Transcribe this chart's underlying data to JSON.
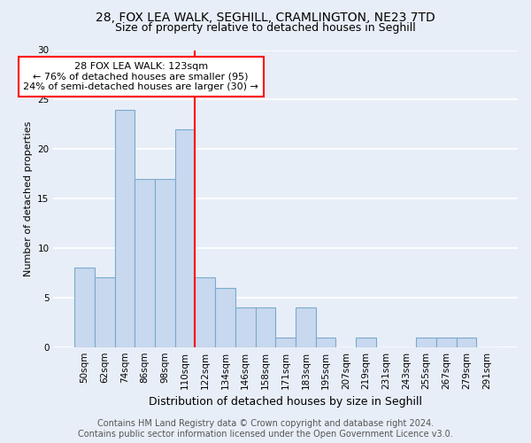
{
  "title1": "28, FOX LEA WALK, SEGHILL, CRAMLINGTON, NE23 7TD",
  "title2": "Size of property relative to detached houses in Seghill",
  "xlabel": "Distribution of detached houses by size in Seghill",
  "ylabel": "Number of detached properties",
  "categories": [
    "50sqm",
    "62sqm",
    "74sqm",
    "86sqm",
    "98sqm",
    "110sqm",
    "122sqm",
    "134sqm",
    "146sqm",
    "158sqm",
    "171sqm",
    "183sqm",
    "195sqm",
    "207sqm",
    "219sqm",
    "231sqm",
    "243sqm",
    "255sqm",
    "267sqm",
    "279sqm",
    "291sqm"
  ],
  "values": [
    8,
    7,
    24,
    17,
    17,
    22,
    7,
    6,
    4,
    4,
    1,
    4,
    1,
    0,
    1,
    0,
    0,
    1,
    1,
    1,
    0
  ],
  "bar_color": "#c8d8ee",
  "bar_edge_color": "#7aaacc",
  "vline_index": 6,
  "annotation_text": "28 FOX LEA WALK: 123sqm\n← 76% of detached houses are smaller (95)\n24% of semi-detached houses are larger (30) →",
  "annotation_box_color": "white",
  "annotation_box_edge_color": "red",
  "vline_color": "red",
  "footer_line1": "Contains HM Land Registry data © Crown copyright and database right 2024.",
  "footer_line2": "Contains public sector information licensed under the Open Government Licence v3.0.",
  "ylim": [
    0,
    30
  ],
  "yticks": [
    0,
    5,
    10,
    15,
    20,
    25,
    30
  ],
  "background_color": "#e8eef8",
  "grid_color": "white",
  "title1_fontsize": 10,
  "title2_fontsize": 9,
  "xlabel_fontsize": 9,
  "ylabel_fontsize": 8,
  "tick_fontsize": 7.5,
  "annotation_fontsize": 8,
  "footer_fontsize": 7
}
